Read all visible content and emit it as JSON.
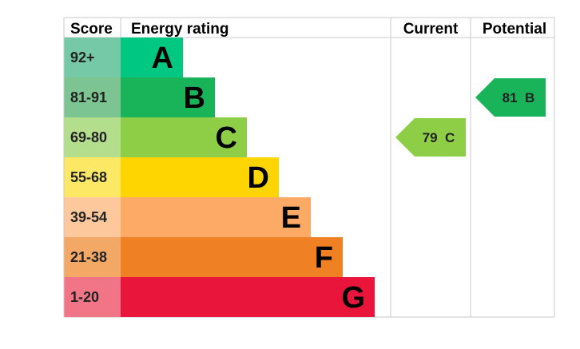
{
  "headers": {
    "score": "Score",
    "energy_rating": "Energy rating",
    "current": "Current",
    "potential": "Potential"
  },
  "chart_data": {
    "type": "bar",
    "bands": [
      {
        "band": "A",
        "range": "92+",
        "color": "#00c781",
        "score_bg": "#75c9a6"
      },
      {
        "band": "B",
        "range": "81-91",
        "color": "#19b459",
        "score_bg": "#7cc491"
      },
      {
        "band": "C",
        "range": "69-80",
        "color": "#8dce46",
        "score_bg": "#b3de8c"
      },
      {
        "band": "D",
        "range": "55-68",
        "color": "#ffd500",
        "score_bg": "#fde866"
      },
      {
        "band": "E",
        "range": "39-54",
        "color": "#fcaa65",
        "score_bg": "#fcc89c"
      },
      {
        "band": "F",
        "range": "21-38",
        "color": "#ef8023",
        "score_bg": "#f4a866"
      },
      {
        "band": "G",
        "range": "1-20",
        "color": "#e9153b",
        "score_bg": "#f27487"
      }
    ],
    "current": {
      "value": 79,
      "band": "C",
      "label": "79  C",
      "color": "#8dce46"
    },
    "potential": {
      "value": 81,
      "band": "B",
      "label": "81  B",
      "color": "#19b459"
    }
  }
}
